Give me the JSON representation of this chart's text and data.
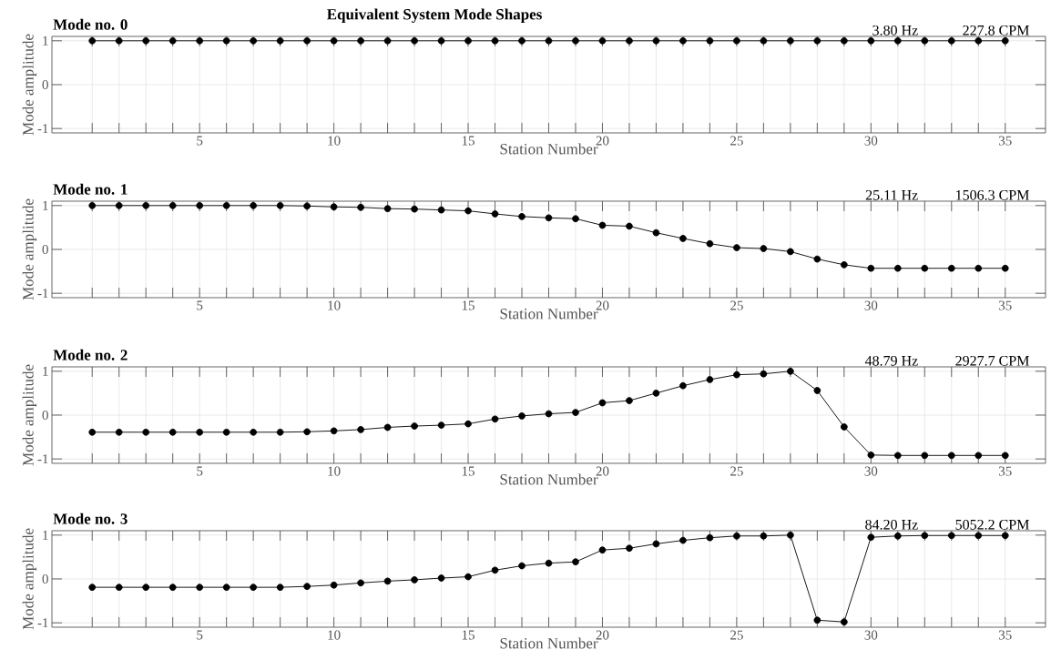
{
  "chart_data": [
    {
      "type": "line",
      "title": "Mode no. 0",
      "xlabel": "Station Number",
      "ylabel": "Mode amplitude",
      "annotations": [
        "Equivalent System Mode Shapes",
        "3.80 Hz",
        "227.8 CPM"
      ],
      "x": [
        1,
        2,
        3,
        4,
        5,
        6,
        7,
        8,
        9,
        10,
        11,
        12,
        13,
        14,
        15,
        16,
        17,
        18,
        19,
        20,
        21,
        22,
        23,
        24,
        25,
        26,
        27,
        28,
        29,
        30,
        31,
        32,
        33,
        34,
        35
      ],
      "series": [
        {
          "color": "#000000",
          "values": [
            1,
            1,
            1,
            1,
            1,
            1,
            1,
            1,
            1,
            1,
            1,
            1,
            1,
            1,
            1,
            1,
            1,
            1,
            1,
            1,
            1,
            1,
            1,
            1,
            1,
            1,
            1,
            1,
            1,
            1,
            1,
            1,
            1,
            1,
            1
          ]
        }
      ],
      "xlim": [
        -0.5,
        36.5
      ],
      "ylim": [
        -1.1,
        1.1
      ],
      "yticks": [
        -1,
        0,
        1
      ],
      "xticks": [
        {
          "value": 1,
          "label": null
        },
        {
          "value": 2,
          "label": null
        },
        {
          "value": 3,
          "label": null
        },
        {
          "value": 4,
          "label": null
        },
        5,
        {
          "value": 6,
          "label": null
        },
        {
          "value": 7,
          "label": null
        },
        {
          "value": 8,
          "label": null
        },
        {
          "value": 9,
          "label": null
        },
        10,
        {
          "value": 11,
          "label": null
        },
        {
          "value": 12,
          "label": null
        },
        {
          "value": 13,
          "label": null
        },
        {
          "value": 14,
          "label": null
        },
        15,
        {
          "value": 16,
          "label": null
        },
        {
          "value": 17,
          "label": null
        },
        {
          "value": 18,
          "label": null
        },
        {
          "value": 19,
          "label": null
        },
        20,
        {
          "value": 21,
          "label": null
        },
        {
          "value": 22,
          "label": null
        },
        {
          "value": 23,
          "label": null
        },
        {
          "value": 24,
          "label": null
        },
        25,
        {
          "value": 26,
          "label": null
        },
        {
          "value": 27,
          "label": null
        },
        {
          "value": 28,
          "label": null
        },
        {
          "value": 29,
          "label": null
        },
        30,
        {
          "value": 31,
          "label": null
        },
        {
          "value": 32,
          "label": null
        },
        {
          "value": 33,
          "label": null
        },
        {
          "value": 34,
          "label": null
        },
        35
      ],
      "grid": true,
      "marker": "circle",
      "line_style": "solid"
    },
    {
      "type": "line",
      "title": "Mode no. 1",
      "xlabel": "Station Number",
      "ylabel": "Mode amplitude",
      "annotations": [
        "25.11 Hz",
        "1506.3 CPM"
      ],
      "x": [
        1,
        2,
        3,
        4,
        5,
        6,
        7,
        8,
        9,
        10,
        11,
        12,
        13,
        14,
        15,
        16,
        17,
        18,
        19,
        20,
        21,
        22,
        23,
        24,
        25,
        26,
        27,
        28,
        29,
        30,
        31,
        32,
        33,
        34,
        35
      ],
      "series": [
        {
          "color": "#000000",
          "values": [
            1,
            1,
            1,
            1,
            1,
            1,
            1,
            1,
            0.99,
            0.97,
            0.96,
            0.93,
            0.92,
            0.9,
            0.88,
            0.81,
            0.75,
            0.72,
            0.7,
            0.55,
            0.53,
            0.38,
            0.25,
            0.13,
            0.04,
            0.02,
            -0.05,
            -0.22,
            -0.35,
            -0.43,
            -0.43,
            -0.43,
            -0.43,
            -0.43,
            -0.43
          ]
        }
      ],
      "xlim": [
        -0.5,
        36.5
      ],
      "ylim": [
        -1.1,
        1.1
      ],
      "yticks": [
        -1,
        0,
        1
      ],
      "xticks": [
        {
          "value": 1,
          "label": null
        },
        {
          "value": 2,
          "label": null
        },
        {
          "value": 3,
          "label": null
        },
        {
          "value": 4,
          "label": null
        },
        5,
        {
          "value": 6,
          "label": null
        },
        {
          "value": 7,
          "label": null
        },
        {
          "value": 8,
          "label": null
        },
        {
          "value": 9,
          "label": null
        },
        10,
        {
          "value": 11,
          "label": null
        },
        {
          "value": 12,
          "label": null
        },
        {
          "value": 13,
          "label": null
        },
        {
          "value": 14,
          "label": null
        },
        15,
        {
          "value": 16,
          "label": null
        },
        {
          "value": 17,
          "label": null
        },
        {
          "value": 18,
          "label": null
        },
        {
          "value": 19,
          "label": null
        },
        20,
        {
          "value": 21,
          "label": null
        },
        {
          "value": 22,
          "label": null
        },
        {
          "value": 23,
          "label": null
        },
        {
          "value": 24,
          "label": null
        },
        25,
        {
          "value": 26,
          "label": null
        },
        {
          "value": 27,
          "label": null
        },
        {
          "value": 28,
          "label": null
        },
        {
          "value": 29,
          "label": null
        },
        30,
        {
          "value": 31,
          "label": null
        },
        {
          "value": 32,
          "label": null
        },
        {
          "value": 33,
          "label": null
        },
        {
          "value": 34,
          "label": null
        },
        35
      ],
      "grid": true,
      "marker": "circle",
      "line_style": "solid"
    },
    {
      "type": "line",
      "title": "Mode no. 2",
      "xlabel": "Station Number",
      "ylabel": "Mode amplitude",
      "annotations": [
        "48.79 Hz",
        "2927.7 CPM"
      ],
      "x": [
        1,
        2,
        3,
        4,
        5,
        6,
        7,
        8,
        9,
        10,
        11,
        12,
        13,
        14,
        15,
        16,
        17,
        18,
        19,
        20,
        21,
        22,
        23,
        24,
        25,
        26,
        27,
        28,
        29,
        30,
        31,
        32,
        33,
        34,
        35
      ],
      "series": [
        {
          "color": "#000000",
          "values": [
            -0.39,
            -0.39,
            -0.39,
            -0.39,
            -0.39,
            -0.39,
            -0.39,
            -0.39,
            -0.38,
            -0.36,
            -0.33,
            -0.28,
            -0.25,
            -0.23,
            -0.2,
            -0.09,
            -0.02,
            0.03,
            0.06,
            0.28,
            0.33,
            0.5,
            0.67,
            0.81,
            0.92,
            0.94,
            1,
            0.56,
            -0.27,
            -0.91,
            -0.92,
            -0.92,
            -0.92,
            -0.92,
            -0.92
          ]
        }
      ],
      "xlim": [
        -0.5,
        36.5
      ],
      "ylim": [
        -1.1,
        1.1
      ],
      "yticks": [
        -1,
        0,
        1
      ],
      "xticks": [
        {
          "value": 1,
          "label": null
        },
        {
          "value": 2,
          "label": null
        },
        {
          "value": 3,
          "label": null
        },
        {
          "value": 4,
          "label": null
        },
        5,
        {
          "value": 6,
          "label": null
        },
        {
          "value": 7,
          "label": null
        },
        {
          "value": 8,
          "label": null
        },
        {
          "value": 9,
          "label": null
        },
        10,
        {
          "value": 11,
          "label": null
        },
        {
          "value": 12,
          "label": null
        },
        {
          "value": 13,
          "label": null
        },
        {
          "value": 14,
          "label": null
        },
        15,
        {
          "value": 16,
          "label": null
        },
        {
          "value": 17,
          "label": null
        },
        {
          "value": 18,
          "label": null
        },
        {
          "value": 19,
          "label": null
        },
        20,
        {
          "value": 21,
          "label": null
        },
        {
          "value": 22,
          "label": null
        },
        {
          "value": 23,
          "label": null
        },
        {
          "value": 24,
          "label": null
        },
        25,
        {
          "value": 26,
          "label": null
        },
        {
          "value": 27,
          "label": null
        },
        {
          "value": 28,
          "label": null
        },
        {
          "value": 29,
          "label": null
        },
        30,
        {
          "value": 31,
          "label": null
        },
        {
          "value": 32,
          "label": null
        },
        {
          "value": 33,
          "label": null
        },
        {
          "value": 34,
          "label": null
        },
        35
      ],
      "grid": true,
      "marker": "circle",
      "line_style": "solid"
    },
    {
      "type": "line",
      "title": "Mode no. 3",
      "xlabel": "Station Number",
      "ylabel": "Mode amplitude",
      "annotations": [
        "84.20 Hz",
        "5052.2 CPM"
      ],
      "x": [
        1,
        2,
        3,
        4,
        5,
        6,
        7,
        8,
        9,
        10,
        11,
        12,
        13,
        14,
        15,
        16,
        17,
        18,
        19,
        20,
        21,
        22,
        23,
        24,
        25,
        26,
        27,
        28,
        29,
        30,
        31,
        32,
        33,
        34,
        35
      ],
      "series": [
        {
          "color": "#000000",
          "values": [
            -0.19,
            -0.19,
            -0.19,
            -0.19,
            -0.19,
            -0.19,
            -0.19,
            -0.19,
            -0.17,
            -0.14,
            -0.09,
            -0.05,
            -0.02,
            0.02,
            0.05,
            0.2,
            0.3,
            0.36,
            0.39,
            0.66,
            0.7,
            0.8,
            0.88,
            0.94,
            0.98,
            0.98,
            1,
            -0.94,
            -0.98,
            0.95,
            0.98,
            0.99,
            0.99,
            0.99,
            0.99
          ]
        }
      ],
      "xlim": [
        -0.5,
        36.5
      ],
      "ylim": [
        -1.1,
        1.1
      ],
      "yticks": [
        -1,
        0,
        1
      ],
      "xticks": [
        {
          "value": 1,
          "label": null
        },
        {
          "value": 2,
          "label": null
        },
        {
          "value": 3,
          "label": null
        },
        {
          "value": 4,
          "label": null
        },
        5,
        {
          "value": 6,
          "label": null
        },
        {
          "value": 7,
          "label": null
        },
        {
          "value": 8,
          "label": null
        },
        {
          "value": 9,
          "label": null
        },
        10,
        {
          "value": 11,
          "label": null
        },
        {
          "value": 12,
          "label": null
        },
        {
          "value": 13,
          "label": null
        },
        {
          "value": 14,
          "label": null
        },
        15,
        {
          "value": 16,
          "label": null
        },
        {
          "value": 17,
          "label": null
        },
        {
          "value": 18,
          "label": null
        },
        {
          "value": 19,
          "label": null
        },
        20,
        {
          "value": 21,
          "label": null
        },
        {
          "value": 22,
          "label": null
        },
        {
          "value": 23,
          "label": null
        },
        {
          "value": 24,
          "label": null
        },
        25,
        {
          "value": 26,
          "label": null
        },
        {
          "value": 27,
          "label": null
        },
        {
          "value": 28,
          "label": null
        },
        {
          "value": 29,
          "label": null
        },
        30,
        {
          "value": 31,
          "label": null
        },
        {
          "value": 32,
          "label": null
        },
        {
          "value": 33,
          "label": null
        },
        {
          "value": 34,
          "label": null
        },
        35
      ],
      "grid": true,
      "marker": "circle",
      "line_style": "solid"
    }
  ]
}
